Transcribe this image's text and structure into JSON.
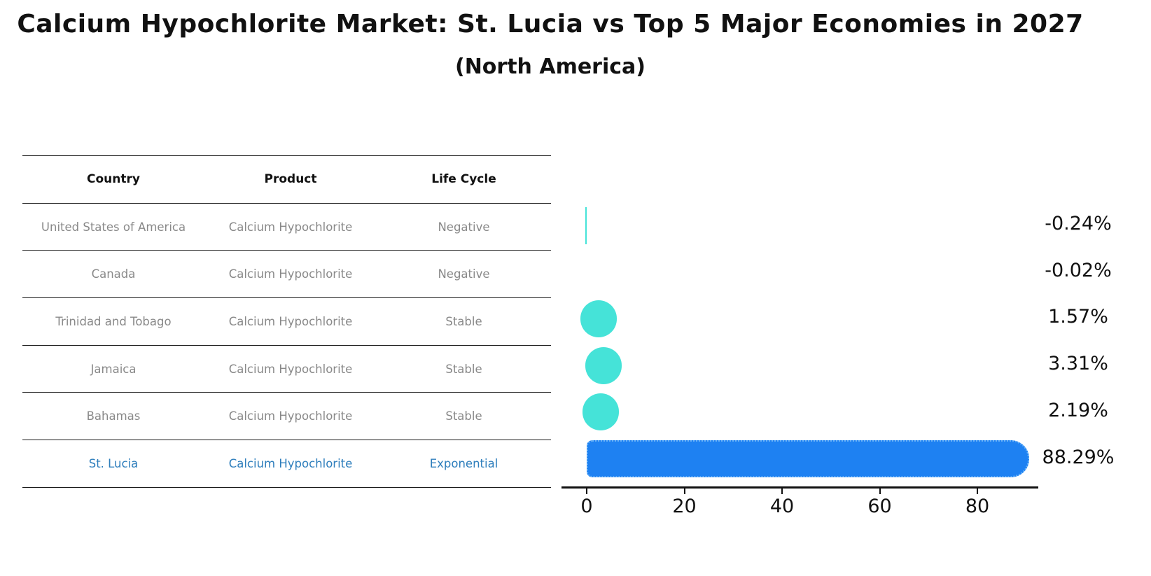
{
  "title": "Calcium Hypochlorite Market: St. Lucia vs Top 5 Major Economies in 2027",
  "subtitle": "(North America)",
  "table": {
    "headers": [
      "Country",
      "Product",
      "Life Cycle"
    ],
    "rows": [
      {
        "country": "United States of America",
        "product": "Calcium Hypochlorite",
        "life_cycle": "Negative",
        "highlight": false
      },
      {
        "country": "Canada",
        "product": "Calcium Hypochlorite",
        "life_cycle": "Negative",
        "highlight": false
      },
      {
        "country": "Trinidad and Tobago",
        "product": "Calcium Hypochlorite",
        "life_cycle": "Stable",
        "highlight": false
      },
      {
        "country": "Jamaica",
        "product": "Calcium Hypochlorite",
        "life_cycle": "Stable",
        "highlight": false
      },
      {
        "country": "Bahamas",
        "product": "Calcium Hypochlorite",
        "life_cycle": "Stable",
        "highlight": false
      },
      {
        "country": "St. Lucia",
        "product": "Calcium Hypochlorite",
        "life_cycle": "Exponential",
        "highlight": true
      }
    ]
  },
  "chart_data": {
    "type": "bar",
    "orientation": "horizontal",
    "categories": [
      "United States of America",
      "Canada",
      "Trinidad and Tobago",
      "Jamaica",
      "Bahamas",
      "St. Lucia"
    ],
    "values": [
      -0.24,
      -0.02,
      1.57,
      3.31,
      2.19,
      88.29
    ],
    "value_labels": [
      "-0.24%",
      "-0.02%",
      "1.57%",
      "3.31%",
      "2.19%",
      "88.29%"
    ],
    "x_ticks": [
      0,
      20,
      40,
      60,
      80
    ],
    "xlim": [
      -5,
      92.5
    ],
    "grid": false,
    "legend": "none",
    "highlight_index": 5,
    "colors": {
      "bar": "#45e3d8",
      "highlight_bar": "#1e81f2",
      "highlight_border": "#66b0f8",
      "highlight_text": "#2e7ebc",
      "row_text": "#898989",
      "axis_text": "#111111"
    }
  }
}
